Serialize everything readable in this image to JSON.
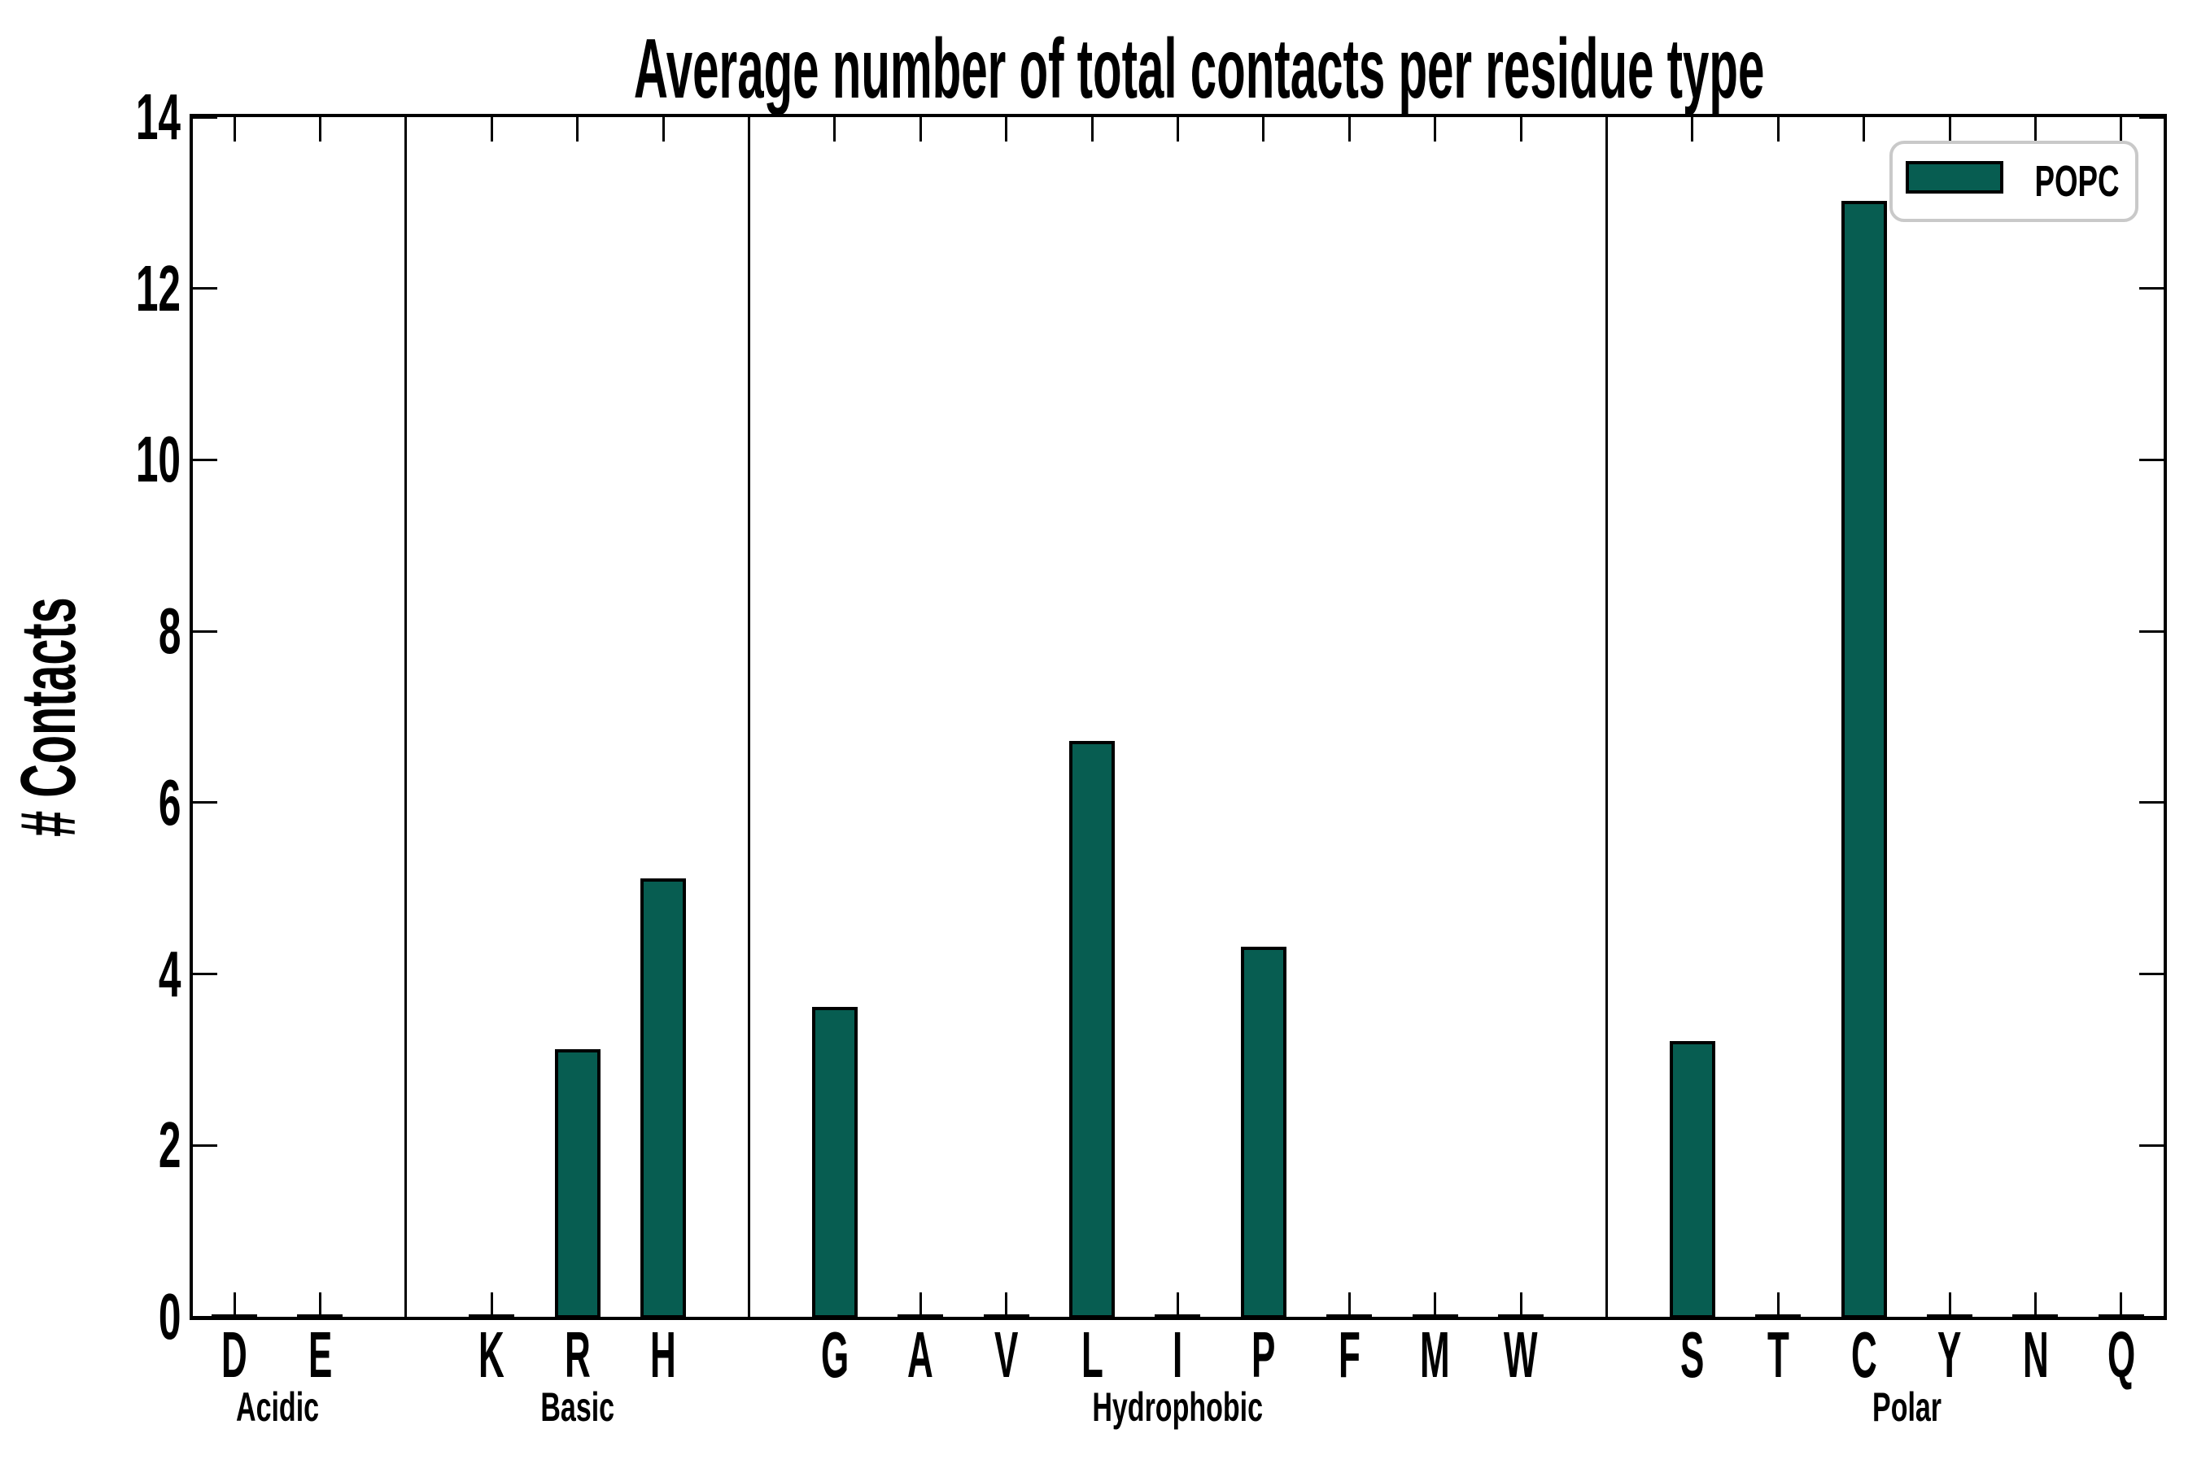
{
  "chart_data": {
    "type": "bar",
    "title": "Average number of total contacts per residue type",
    "ylabel": "# Contacts",
    "xlabel": "",
    "ylim": [
      0,
      14
    ],
    "yticks": [
      0,
      2,
      4,
      6,
      8,
      10,
      12,
      14
    ],
    "grid": false,
    "legend_position": "upper right",
    "legend": [
      {
        "label": "POPC",
        "color": "#075D51"
      }
    ],
    "categories": [
      "D",
      "E",
      "K",
      "R",
      "H",
      "G",
      "A",
      "V",
      "L",
      "I",
      "P",
      "F",
      "M",
      "W",
      "S",
      "T",
      "C",
      "Y",
      "N",
      "Q"
    ],
    "series": [
      {
        "name": "POPC",
        "values": [
          0,
          0,
          0,
          3.1,
          5.1,
          3.6,
          0,
          0,
          6.7,
          0,
          4.3,
          0,
          0,
          0,
          3.2,
          0,
          13.0,
          0,
          0,
          0
        ]
      }
    ],
    "groups": [
      {
        "name": "Acidic",
        "categories": [
          "D",
          "E"
        ]
      },
      {
        "name": "Basic",
        "categories": [
          "K",
          "R",
          "H"
        ]
      },
      {
        "name": "Hydrophobic",
        "categories": [
          "G",
          "A",
          "V",
          "L",
          "I",
          "P",
          "F",
          "M",
          "W"
        ]
      },
      {
        "name": "Polar",
        "categories": [
          "S",
          "T",
          "C",
          "Y",
          "N",
          "Q"
        ]
      }
    ]
  },
  "colors": {
    "bar_fill": "#075D51",
    "bar_edge": "#000000",
    "axis": "#000000",
    "text": "#000000",
    "legend_border": "#c9c9c9",
    "background": "#ffffff"
  }
}
